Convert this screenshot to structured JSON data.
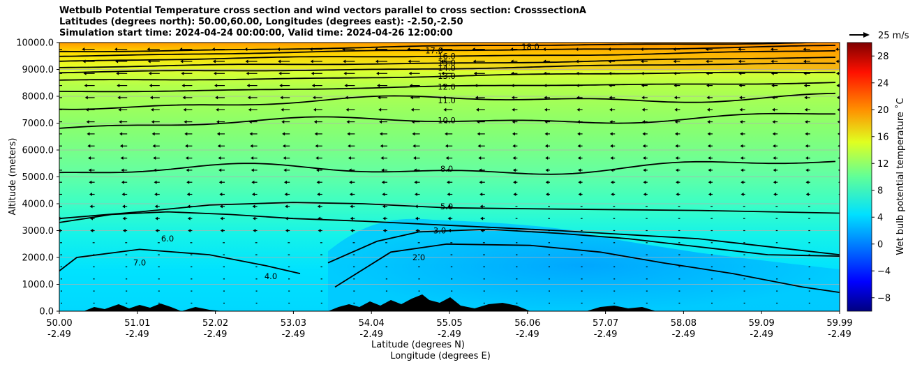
{
  "title_lines": [
    "Wetbulb Potential Temperature cross section and wind vectors parallel to cross section: CrosssectionA",
    "Latitudes (degrees north): 50.00,60.00, Longitudes (degrees east): -2.50,-2.50",
    "Simulation start time: 2024-04-24 00:00:00, Valid time: 2024-04-26 12:00:00"
  ],
  "chart_data": {
    "type": "heatmap",
    "subtype": "cross-section contour with wind vectors",
    "ylabel": "Altitude (meters)",
    "xlabel_lines": [
      "Latitude (degrees N)",
      "Longitude (degrees E)"
    ],
    "x_ticks": [
      {
        "lat": "50.00",
        "lon": "-2.49"
      },
      {
        "lat": "51.01",
        "lon": "-2.49"
      },
      {
        "lat": "52.02",
        "lon": "-2.49"
      },
      {
        "lat": "53.03",
        "lon": "-2.49"
      },
      {
        "lat": "54.04",
        "lon": "-2.49"
      },
      {
        "lat": "55.05",
        "lon": "-2.49"
      },
      {
        "lat": "56.06",
        "lon": "-2.49"
      },
      {
        "lat": "57.07",
        "lon": "-2.49"
      },
      {
        "lat": "58.08",
        "lon": "-2.49"
      },
      {
        "lat": "59.09",
        "lon": "-2.49"
      },
      {
        "lat": "59.99",
        "lon": "-2.49"
      }
    ],
    "xlim": [
      50.0,
      59.99
    ],
    "y_ticks": [
      "0.0",
      "1000.0",
      "2000.0",
      "3000.0",
      "4000.0",
      "5000.0",
      "6000.0",
      "7000.0",
      "8000.0",
      "9000.0",
      "10000.0"
    ],
    "ylim": [
      0,
      10000
    ],
    "grid": "horizontal",
    "colorbar": {
      "label": "Wet bulb potential temperature ˚C",
      "ticks": [
        "−8",
        "−4",
        "0",
        "4",
        "8",
        "12",
        "16",
        "20",
        "24",
        "28"
      ],
      "range": [
        -10,
        30
      ],
      "colormap": "jet"
    },
    "quiver_key": "25 m/s",
    "contour_levels": [
      {
        "value": 18.0,
        "label": "18.0",
        "altitude": 9850
      },
      {
        "value": 17.0,
        "label": "17.0",
        "altitude": 9700
      },
      {
        "value": 16.0,
        "label": "16.0",
        "altitude": 9500
      },
      {
        "value": 15.0,
        "label": "15.0",
        "altitude": 9250
      },
      {
        "value": 14.0,
        "label": "14.0",
        "altitude": 9050
      },
      {
        "value": 13.0,
        "label": "13.0",
        "altitude": 8750
      },
      {
        "value": 12.0,
        "label": "12.0",
        "altitude": 8350
      },
      {
        "value": 11.0,
        "label": "11.0",
        "altitude": 7850
      },
      {
        "value": 10.0,
        "label": "10.0",
        "altitude": 7100
      },
      {
        "value": 8.0,
        "label": "8.0",
        "altitude": 5300
      },
      {
        "value": 7.0,
        "label": "7.0",
        "altitude": 1800
      },
      {
        "value": 6.0,
        "label": "6.0",
        "altitude": 2700
      },
      {
        "value": 5.0,
        "label": "5.0",
        "altitude": 3900
      },
      {
        "value": 4.0,
        "label": "4.0",
        "altitude": 1300
      },
      {
        "value": 3.0,
        "label": "3.0",
        "altitude": 3000
      },
      {
        "value": 2.0,
        "label": "2.0",
        "altitude": 2000
      }
    ],
    "fill_colors": {
      "top": "#ff9a00",
      "upper": "#a6ff5a",
      "mid": "#6bffa0",
      "low": "#00e9ff",
      "cold_core": "#00a4ff",
      "terrain": "#000000"
    }
  }
}
